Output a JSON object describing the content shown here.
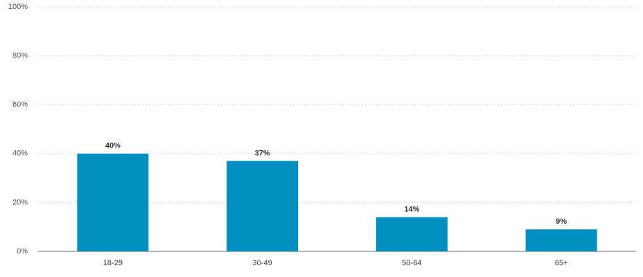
{
  "chart_data": {
    "type": "bar",
    "categories": [
      "18-29",
      "30-49",
      "50-64",
      "65+"
    ],
    "values": [
      40,
      37,
      14,
      9
    ],
    "value_labels": [
      "40%",
      "37%",
      "14%",
      "9%"
    ],
    "color": "#0090c0",
    "ylim": [
      0,
      100
    ],
    "yticks": [
      {
        "value": 0,
        "label": "0%"
      },
      {
        "value": 20,
        "label": "20%"
      },
      {
        "value": 40,
        "label": "40%"
      },
      {
        "value": 60,
        "label": "60%"
      },
      {
        "value": 80,
        "label": "80%"
      },
      {
        "value": 100,
        "label": "100%"
      }
    ],
    "grid": true
  }
}
